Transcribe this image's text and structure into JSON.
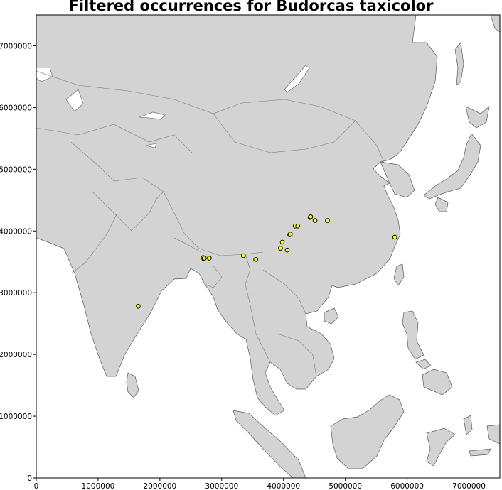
{
  "title": "Filtered occurrences for Budorcas taxicolor",
  "chart_data": {
    "type": "scatter",
    "title": "Filtered occurrences for Budorcas taxicolor",
    "xlim": [
      0,
      7500000
    ],
    "ylim": [
      0,
      7500000
    ],
    "xticks": [
      0,
      1000000,
      2000000,
      3000000,
      4000000,
      5000000,
      6000000,
      7000000
    ],
    "yticks": [
      0,
      1000000,
      2000000,
      3000000,
      4000000,
      5000000,
      6000000,
      7000000
    ],
    "xtick_labels": [
      "0",
      "1000000",
      "2000000",
      "3000000",
      "4000000",
      "5000000",
      "6000000",
      "7000000"
    ],
    "ytick_labels": [
      "0",
      "1000000",
      "2000000",
      "3000000",
      "4000000",
      "5000000",
      "6000000",
      "7000000"
    ],
    "grid": false,
    "land_color": "#d3d3d3",
    "water_color": "#ffffff",
    "border_color": "#888888",
    "point_fill": "#ffff00",
    "point_edge": "#000000",
    "points": [
      {
        "x": 1650000,
        "y": 2780000
      },
      {
        "x": 2700000,
        "y": 3570000
      },
      {
        "x": 2710000,
        "y": 3550000
      },
      {
        "x": 2720000,
        "y": 3560000
      },
      {
        "x": 2800000,
        "y": 3560000
      },
      {
        "x": 3350000,
        "y": 3600000
      },
      {
        "x": 3550000,
        "y": 3540000
      },
      {
        "x": 3950000,
        "y": 3720000
      },
      {
        "x": 3980000,
        "y": 3820000
      },
      {
        "x": 4060000,
        "y": 3690000
      },
      {
        "x": 4100000,
        "y": 3940000
      },
      {
        "x": 4110000,
        "y": 3950000
      },
      {
        "x": 4190000,
        "y": 4080000
      },
      {
        "x": 4230000,
        "y": 4080000
      },
      {
        "x": 4430000,
        "y": 4220000
      },
      {
        "x": 4440000,
        "y": 4230000
      },
      {
        "x": 4510000,
        "y": 4170000
      },
      {
        "x": 4710000,
        "y": 4170000
      },
      {
        "x": 5800000,
        "y": 3900000
      }
    ]
  }
}
